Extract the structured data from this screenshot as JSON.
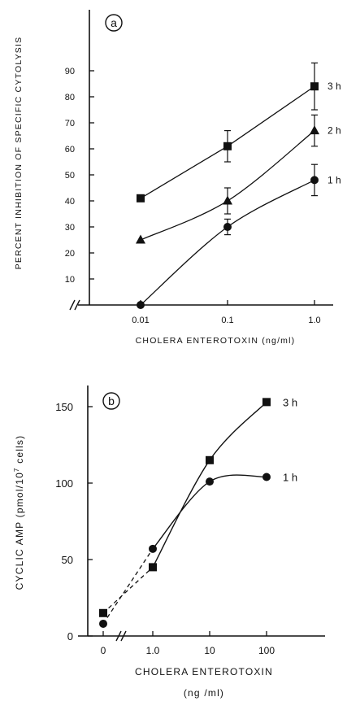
{
  "chart_data": [
    {
      "panel": "a",
      "type": "line",
      "xlabel": "CHOLERA ENTEROTOXIN (ng/ml)",
      "ylabel": "PERCENT INHIBITION OF SPECIFIC CYTOLYSIS",
      "x_scale": "log",
      "x_ticks": [
        "0.01",
        "0.1",
        "1.0"
      ],
      "x": [
        0.01,
        0.1,
        1.0
      ],
      "ylim": [
        0,
        95
      ],
      "y_ticks": [
        "10",
        "20",
        "30",
        "40",
        "50",
        "60",
        "70",
        "80",
        "90"
      ],
      "grid": false,
      "series": [
        {
          "name": "3 h",
          "marker": "square",
          "values": [
            41,
            61,
            84
          ],
          "error": [
            0,
            6,
            9
          ]
        },
        {
          "name": "2 h",
          "marker": "triangle",
          "values": [
            25,
            40,
            67
          ],
          "error": [
            0,
            5,
            6
          ]
        },
        {
          "name": "1 h",
          "marker": "circle",
          "values": [
            0,
            30,
            48
          ],
          "error": [
            0,
            3,
            6
          ]
        }
      ]
    },
    {
      "panel": "b",
      "type": "line",
      "xlabel": "CHOLERA ENTEROTOXIN",
      "xlabel_unit": "(ng /ml)",
      "ylabel": "CYCLIC AMP (pmol/10⁷ cells)",
      "x_scale": "log",
      "x_ticks": [
        "0",
        "1.0",
        "10",
        "100"
      ],
      "x": [
        0,
        1.0,
        10,
        100
      ],
      "ylim": [
        0,
        190
      ],
      "y_ticks": [
        "0",
        "50",
        "100",
        "150"
      ],
      "grid": false,
      "series": [
        {
          "name": "3 h",
          "marker": "square",
          "values": [
            15,
            45,
            115,
            153
          ]
        },
        {
          "name": "1 h",
          "marker": "circle",
          "values": [
            8,
            57,
            101,
            104
          ]
        }
      ]
    }
  ],
  "panel_a": {
    "letter": "a",
    "xlabel": "CHOLERA ENTEROTOXIN (ng/ml)",
    "ylabel": "PERCENT INHIBITION OF SPECIFIC CYTOLYSIS"
  },
  "panel_b": {
    "letter": "b",
    "xlabel": "CHOLERA ENTEROTOXIN",
    "xlabel_unit": "(ng /ml)",
    "ylabel_main": "CYCLIC AMP (pmol/10",
    "ylabel_sup": "7",
    "ylabel_end": " cells)"
  }
}
